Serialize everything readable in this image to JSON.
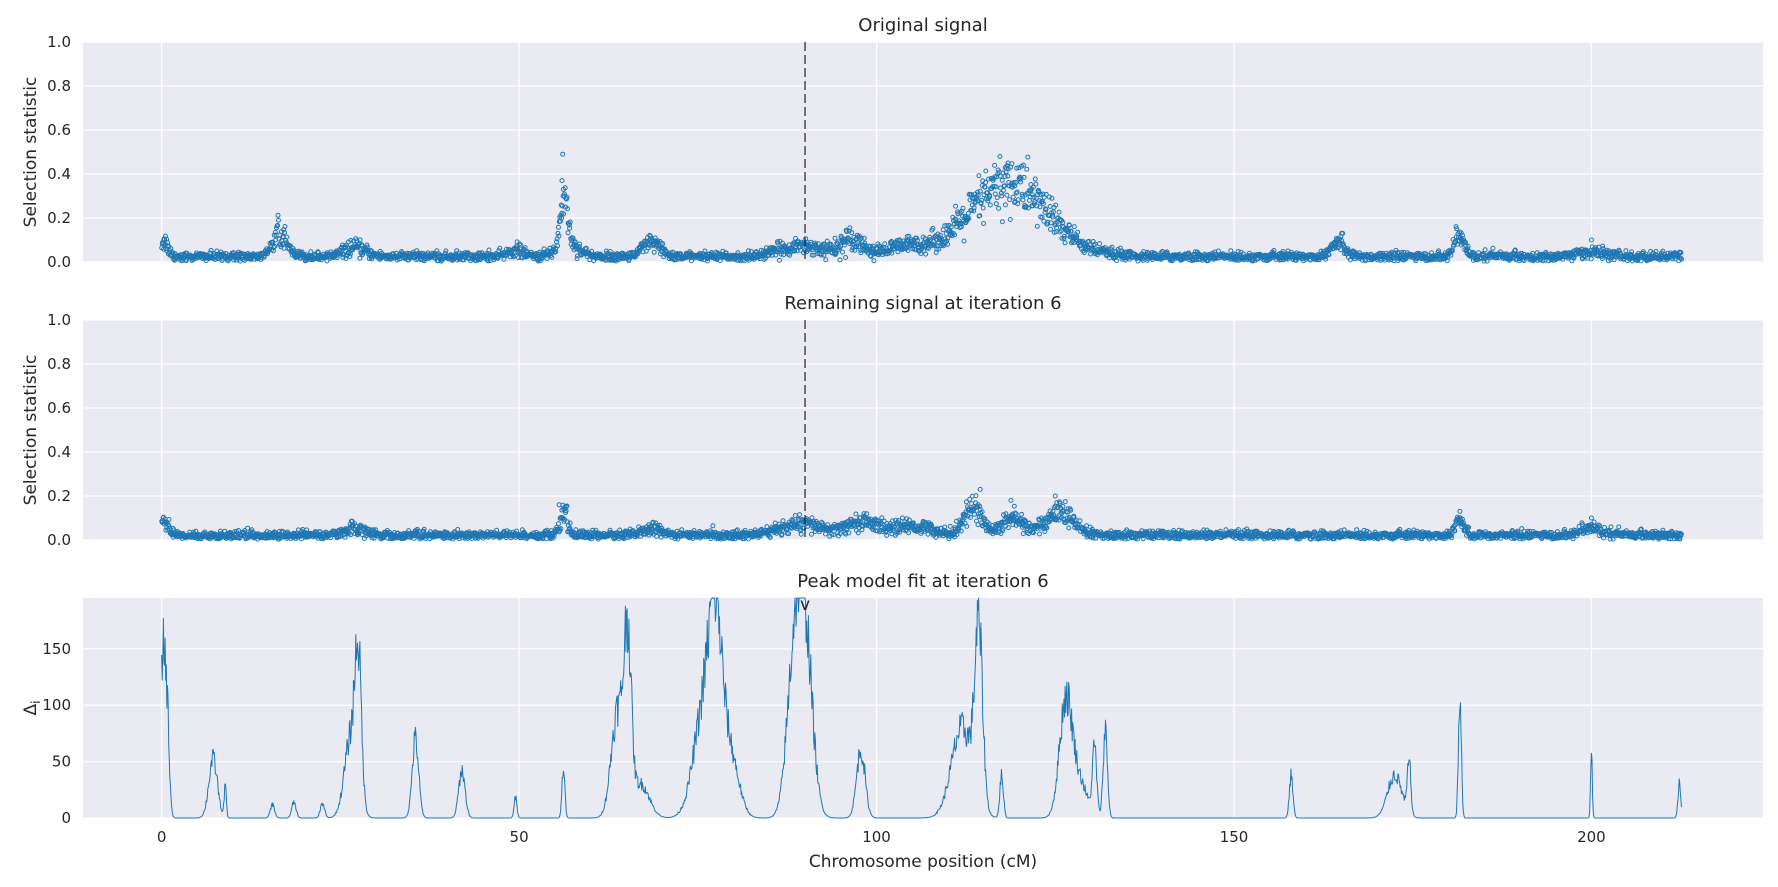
{
  "chart_data": [
    {
      "type": "scatter",
      "title": "Original signal",
      "ylabel": "Selection statistic",
      "xlim": [
        -11,
        224
      ],
      "ylim": [
        0,
        1
      ],
      "yticks": [
        "0.0",
        "0.2",
        "0.4",
        "0.6",
        "0.8",
        "1.0"
      ],
      "ytick_values": [
        0,
        0.2,
        0.4,
        0.6,
        0.8,
        1.0
      ],
      "xgrid": [
        0,
        50,
        100,
        150,
        200
      ],
      "vline_x": 90,
      "x_range": [
        0,
        212.6
      ],
      "point_color": "#1f77b4",
      "baseline": 0.025,
      "peaks": [
        {
          "x": 0.3,
          "height": 0.07,
          "width": 0.6
        },
        {
          "x": 16.5,
          "height": 0.12,
          "width": 0.9
        },
        {
          "x": 27,
          "height": 0.04,
          "width": 1.5
        },
        {
          "x": 49.5,
          "height": 0.03,
          "width": 1
        },
        {
          "x": 56.3,
          "height": 0.22,
          "width": 0.5
        },
        {
          "x": 56.8,
          "height": 0.06,
          "width": 1.5
        },
        {
          "x": 68.5,
          "height": 0.06,
          "width": 1.2
        },
        {
          "x": 89.5,
          "height": 0.05,
          "width": 3
        },
        {
          "x": 96.5,
          "height": 0.08,
          "width": 1.5
        },
        {
          "x": 104,
          "height": 0.04,
          "width": 3
        },
        {
          "x": 118.5,
          "height": 0.33,
          "width": 5.5
        },
        {
          "x": 164.5,
          "height": 0.07,
          "width": 1
        },
        {
          "x": 181.5,
          "height": 0.09,
          "width": 0.7
        },
        {
          "x": 200,
          "height": 0.02,
          "width": 2
        }
      ],
      "outliers": [
        {
          "x": 56.1,
          "y": 0.49
        },
        {
          "x": 56.0,
          "y": 0.37
        },
        {
          "x": 56.2,
          "y": 0.33
        },
        {
          "x": 118.4,
          "y": 0.45
        },
        {
          "x": 118.0,
          "y": 0.43
        },
        {
          "x": 200.0,
          "y": 0.1
        }
      ]
    },
    {
      "type": "scatter",
      "title": "Remaining signal at iteration 6",
      "ylabel": "Selection statistic",
      "xlim": [
        -11,
        224
      ],
      "ylim": [
        0,
        1
      ],
      "yticks": [
        "0.0",
        "0.2",
        "0.4",
        "0.6",
        "0.8",
        "1.0"
      ],
      "ytick_values": [
        0,
        0.2,
        0.4,
        0.6,
        0.8,
        1.0
      ],
      "xgrid": [
        0,
        50,
        100,
        150,
        200
      ],
      "vline_x": 90,
      "x_range": [
        0,
        212.6
      ],
      "point_color": "#1f77b4",
      "baseline": 0.022,
      "peaks": [
        {
          "x": 0.3,
          "height": 0.07,
          "width": 0.6
        },
        {
          "x": 27,
          "height": 0.03,
          "width": 1.5
        },
        {
          "x": 56.3,
          "height": 0.1,
          "width": 0.5
        },
        {
          "x": 68.5,
          "height": 0.03,
          "width": 1.2
        },
        {
          "x": 89.5,
          "height": 0.05,
          "width": 3
        },
        {
          "x": 98,
          "height": 0.06,
          "width": 2
        },
        {
          "x": 105,
          "height": 0.04,
          "width": 3
        },
        {
          "x": 113.5,
          "height": 0.13,
          "width": 1.2
        },
        {
          "x": 119,
          "height": 0.08,
          "width": 1.5
        },
        {
          "x": 125.5,
          "height": 0.1,
          "width": 2
        },
        {
          "x": 181.5,
          "height": 0.08,
          "width": 0.6
        },
        {
          "x": 200,
          "height": 0.03,
          "width": 1.5
        }
      ],
      "outliers": [
        {
          "x": 55.6,
          "y": 0.16
        },
        {
          "x": 56.4,
          "y": 0.15
        },
        {
          "x": 114.5,
          "y": 0.23
        },
        {
          "x": 118.8,
          "y": 0.18
        },
        {
          "x": 125.0,
          "y": 0.2
        },
        {
          "x": 181.6,
          "y": 0.13
        },
        {
          "x": 200.0,
          "y": 0.1
        }
      ]
    },
    {
      "type": "line",
      "title": "Peak model fit at iteration 6",
      "xlabel": "Chromosome position (cM)",
      "ylabel": "Δi",
      "xlim": [
        -11,
        224
      ],
      "ylim": [
        0,
        195
      ],
      "yticks": [
        "0",
        "50",
        "100",
        "150"
      ],
      "ytick_values": [
        0,
        50,
        100,
        150
      ],
      "xticks": [
        "0",
        "50",
        "100",
        "150",
        "200"
      ],
      "xtick_values": [
        0,
        50,
        100,
        150,
        200
      ],
      "line_color": "#1f77b4",
      "marker": {
        "x": 90,
        "label": "v"
      },
      "peaks": [
        {
          "x": 0.2,
          "height": 143,
          "width": 0.35
        },
        {
          "x": 0.8,
          "height": 75,
          "width": 0.3
        },
        {
          "x": 7.2,
          "height": 52,
          "width": 0.6
        },
        {
          "x": 8.9,
          "height": 28,
          "width": 0.15
        },
        {
          "x": 15.5,
          "height": 12,
          "width": 0.3
        },
        {
          "x": 18.5,
          "height": 14,
          "width": 0.3
        },
        {
          "x": 22.5,
          "height": 13,
          "width": 0.3
        },
        {
          "x": 26.5,
          "height": 72,
          "width": 0.9
        },
        {
          "x": 27.5,
          "height": 120,
          "width": 0.45
        },
        {
          "x": 35.5,
          "height": 70,
          "width": 0.45
        },
        {
          "x": 42,
          "height": 42,
          "width": 0.45
        },
        {
          "x": 49.5,
          "height": 18,
          "width": 0.2
        },
        {
          "x": 56.2,
          "height": 45,
          "width": 0.2
        },
        {
          "x": 63.8,
          "height": 95,
          "width": 0.9
        },
        {
          "x": 65.2,
          "height": 140,
          "width": 0.5
        },
        {
          "x": 67,
          "height": 30,
          "width": 1.2
        },
        {
          "x": 76,
          "height": 100,
          "width": 1.5
        },
        {
          "x": 77.5,
          "height": 125,
          "width": 0.9
        },
        {
          "x": 79.5,
          "height": 55,
          "width": 1.2
        },
        {
          "x": 89.8,
          "height": 180,
          "width": 1.1
        },
        {
          "x": 88.3,
          "height": 95,
          "width": 1.0
        },
        {
          "x": 97.8,
          "height": 60,
          "width": 0.6
        },
        {
          "x": 112,
          "height": 80,
          "width": 1.5
        },
        {
          "x": 114.3,
          "height": 150,
          "width": 0.55
        },
        {
          "x": 117.5,
          "height": 38,
          "width": 0.25
        },
        {
          "x": 126.5,
          "height": 105,
          "width": 0.9
        },
        {
          "x": 128.5,
          "height": 30,
          "width": 1.0
        },
        {
          "x": 130.5,
          "height": 60,
          "width": 0.3
        },
        {
          "x": 132,
          "height": 78,
          "width": 0.3
        },
        {
          "x": 158,
          "height": 38,
          "width": 0.25
        },
        {
          "x": 172.5,
          "height": 38,
          "width": 1.0
        },
        {
          "x": 174.5,
          "height": 45,
          "width": 0.25
        },
        {
          "x": 181.6,
          "height": 108,
          "width": 0.2
        },
        {
          "x": 200,
          "height": 58,
          "width": 0.12
        },
        {
          "x": 212.3,
          "height": 30,
          "width": 0.2
        }
      ]
    }
  ]
}
